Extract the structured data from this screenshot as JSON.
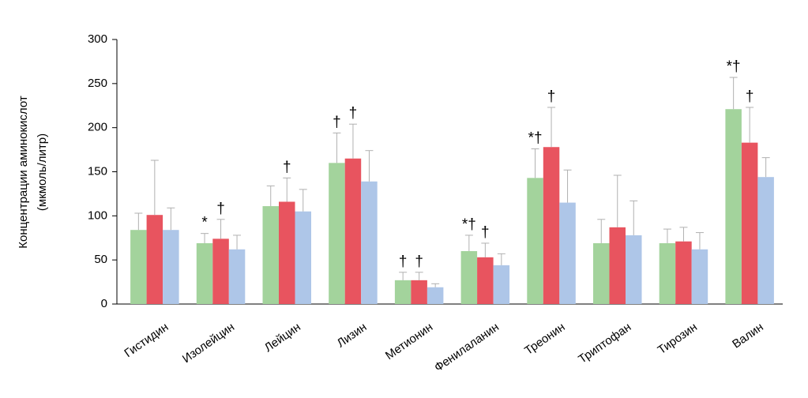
{
  "chart_data": {
    "type": "bar",
    "ylabel": [
      "Концентрации аминокислот",
      "(мкмоль/литр)"
    ],
    "categories": [
      "Гистидин",
      "Изолейцин",
      "Лейцин",
      "Лизин",
      "Метионин",
      "Фенилаланин",
      "Треонин",
      "Триптофан",
      "Тирозин",
      "Валин"
    ],
    "series": [
      {
        "color": "#a3d39c",
        "values": [
          84,
          69,
          111,
          160,
          27,
          60,
          143,
          69,
          69,
          221
        ],
        "errors": [
          19,
          11,
          23,
          34,
          9,
          18,
          33,
          27,
          16,
          36
        ],
        "annotations": [
          null,
          "*",
          null,
          "†",
          "†",
          "*†",
          "*†",
          null,
          null,
          "*†"
        ]
      },
      {
        "color": "#e8545f",
        "values": [
          101,
          74,
          116,
          165,
          27,
          53,
          178,
          87,
          71,
          183
        ],
        "errors": [
          62,
          22,
          27,
          39,
          9,
          16,
          45,
          59,
          16,
          40
        ],
        "annotations": [
          null,
          "†",
          "†",
          "†",
          "†",
          "†",
          "†",
          null,
          null,
          "†"
        ]
      },
      {
        "color": "#aec6e8",
        "values": [
          84,
          62,
          105,
          139,
          19,
          44,
          115,
          78,
          62,
          144
        ],
        "errors": [
          25,
          16,
          25,
          35,
          4,
          13,
          37,
          39,
          19,
          22
        ],
        "annotations": [
          null,
          null,
          null,
          null,
          null,
          null,
          null,
          null,
          null,
          null
        ]
      }
    ],
    "error_color": "#b0b0b0",
    "ylim": [
      0,
      300
    ],
    "yticks": [
      0,
      50,
      100,
      150,
      200,
      250,
      300
    ]
  }
}
